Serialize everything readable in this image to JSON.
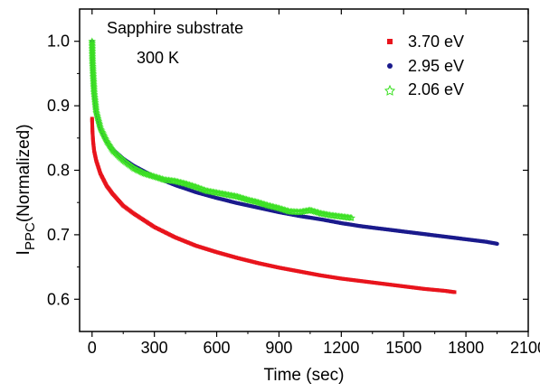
{
  "chart_data": {
    "type": "scatter",
    "xlabel": "Time (sec)",
    "ylabel_main": "I",
    "ylabel_sub": "PPC",
    "ylabel_rest": "(Normalized)",
    "xlim": [
      -60,
      2100
    ],
    "ylim": [
      0.55,
      1.05
    ],
    "xticks": [
      0,
      300,
      600,
      900,
      1200,
      1500,
      1800,
      2100
    ],
    "yticks": [
      0.6,
      0.7,
      0.8,
      0.9,
      1.0
    ],
    "ytick_labels": [
      "0.6",
      "0.7",
      "0.8",
      "0.9",
      "1.0"
    ],
    "annotations": [
      "Sapphire substrate",
      "300 K"
    ],
    "legend_position": "top-right",
    "series": [
      {
        "name": "3.70 eV",
        "color": "#e8141c",
        "marker": "square",
        "x": [
          0,
          2,
          5,
          10,
          20,
          40,
          70,
          100,
          150,
          200,
          300,
          400,
          500,
          600,
          700,
          800,
          900,
          1000,
          1100,
          1200,
          1300,
          1400,
          1500,
          1600,
          1700,
          1745
        ],
        "y": [
          0.88,
          0.86,
          0.845,
          0.83,
          0.815,
          0.795,
          0.776,
          0.763,
          0.745,
          0.733,
          0.712,
          0.696,
          0.683,
          0.673,
          0.664,
          0.656,
          0.649,
          0.643,
          0.637,
          0.632,
          0.628,
          0.624,
          0.62,
          0.616,
          0.613,
          0.611
        ]
      },
      {
        "name": "2.95 eV",
        "color": "#1a1a8c",
        "marker": "circle",
        "x": [
          0,
          2,
          5,
          10,
          20,
          40,
          70,
          100,
          150,
          200,
          300,
          400,
          500,
          600,
          700,
          800,
          900,
          1000,
          1100,
          1200,
          1300,
          1400,
          1500,
          1600,
          1700,
          1800,
          1900,
          1950
        ],
        "y": [
          1.0,
          0.98,
          0.94,
          0.915,
          0.89,
          0.865,
          0.845,
          0.832,
          0.818,
          0.807,
          0.79,
          0.777,
          0.766,
          0.757,
          0.749,
          0.742,
          0.735,
          0.729,
          0.724,
          0.718,
          0.713,
          0.709,
          0.705,
          0.701,
          0.697,
          0.693,
          0.689,
          0.686
        ]
      },
      {
        "name": "2.06 eV",
        "color": "#3ce024",
        "marker": "star",
        "x": [
          0,
          2,
          5,
          10,
          20,
          40,
          70,
          100,
          150,
          200,
          250,
          300,
          350,
          400,
          450,
          500,
          550,
          600,
          650,
          700,
          750,
          800,
          850,
          900,
          950,
          1000,
          1050,
          1100,
          1150,
          1200,
          1250
        ],
        "y": [
          1.0,
          0.97,
          0.95,
          0.92,
          0.89,
          0.865,
          0.845,
          0.83,
          0.815,
          0.803,
          0.795,
          0.79,
          0.785,
          0.783,
          0.779,
          0.774,
          0.768,
          0.765,
          0.762,
          0.759,
          0.754,
          0.75,
          0.745,
          0.741,
          0.736,
          0.735,
          0.738,
          0.733,
          0.73,
          0.728,
          0.726
        ]
      }
    ]
  }
}
